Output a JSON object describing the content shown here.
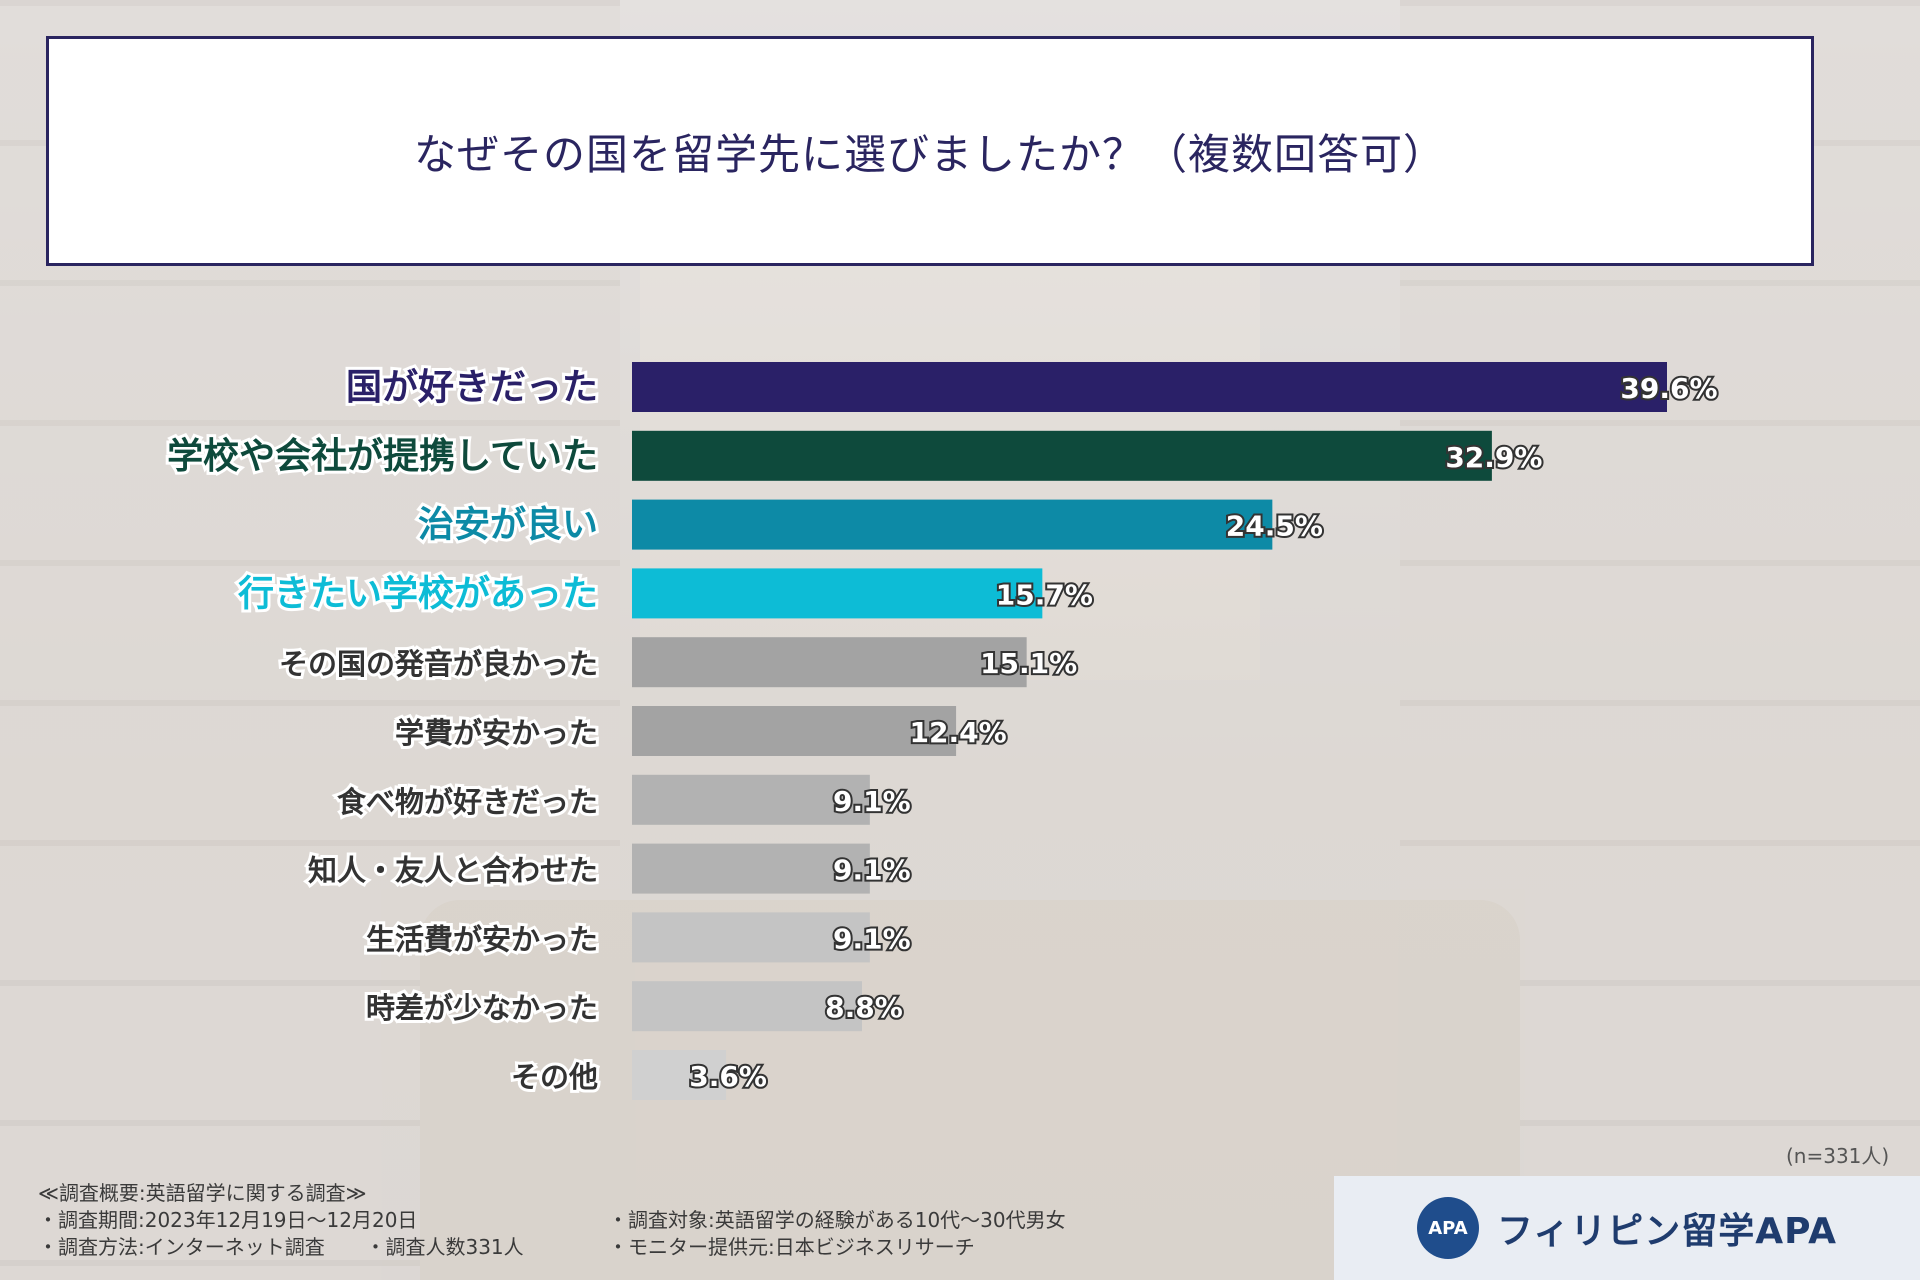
{
  "chart_data": {
    "type": "bar",
    "orientation": "horizontal",
    "title": "なぜその国を留学先に選びましたか？（複数回答可）",
    "categories": [
      "国が好きだった",
      "学校や会社が提携していた",
      "治安が良い",
      "行きたい学校があった",
      "その国の発音が良かった",
      "学費が安かった",
      "食べ物が好きだった",
      "知人・友人と合わせた",
      "生活費が安かった",
      "時差が少なかった",
      "その他"
    ],
    "values": [
      39.6,
      32.9,
      24.5,
      15.7,
      15.1,
      12.4,
      9.1,
      9.1,
      9.1,
      8.8,
      3.6
    ],
    "value_labels": [
      "39.6%",
      "32.9%",
      "24.5%",
      "15.7%",
      "15.1%",
      "12.4%",
      "9.1%",
      "9.1%",
      "9.1%",
      "8.8%",
      "3.6%"
    ],
    "bar_colors": [
      "#2a2068",
      "#0e4a3c",
      "#0d8aa6",
      "#0dbcd6",
      "#a3a3a3",
      "#a3a3a3",
      "#b2b2b2",
      "#b2b2b2",
      "#c4c4c4",
      "#c4c4c4",
      "#d0d0d0"
    ],
    "label_colors": [
      "#2a2068",
      "#0e4a3c",
      "#0d8aa6",
      "#0dbcd6",
      "#333333",
      "#333333",
      "#333333",
      "#333333",
      "#333333",
      "#333333",
      "#333333"
    ],
    "xlim": [
      0,
      45
    ],
    "grid": false,
    "legend": "none"
  },
  "sample_note": "(n=331人)",
  "notes": {
    "heading": "≪調査概要:英語留学に関する調査≫",
    "period": "・調査期間:2023年12月19日～12月20日",
    "method": "・調査方法:インターネット調査",
    "count": "・調査人数331人",
    "target": "・調査対象:英語留学の経験がある10代～30代男女",
    "provider": "・モニター提供元:日本ビジネスリサーチ"
  },
  "brand": {
    "logo_text": "APA",
    "name": "フィリピン留学APA"
  }
}
